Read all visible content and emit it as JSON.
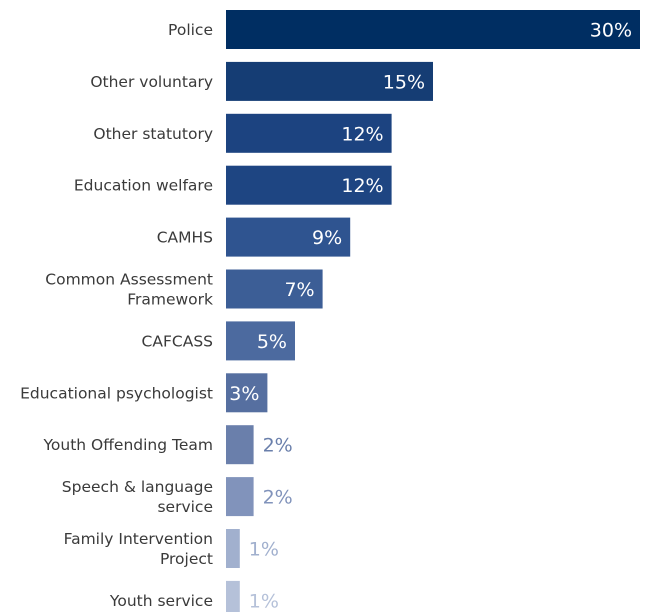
{
  "chart_data": {
    "type": "bar",
    "orientation": "horizontal",
    "categories": [
      "Police",
      "Other voluntary",
      "Other statutory",
      "Education welfare",
      "CAMHS",
      "Common Assessment Framework",
      "CAFCASS",
      "Educational psychologist",
      "Youth Offending Team",
      "Speech & language service",
      "Family Intervention Project",
      "Youth service"
    ],
    "values": [
      30,
      15,
      12,
      12,
      9,
      7,
      5,
      3,
      2,
      2,
      1,
      1
    ],
    "value_labels": [
      "30%",
      "15%",
      "12%",
      "12%",
      "9%",
      "7%",
      "5%",
      "3%",
      "2%",
      "2%",
      "1%",
      "1%"
    ],
    "category_label_lines": [
      [
        "Police"
      ],
      [
        "Other voluntary"
      ],
      [
        "Other statutory"
      ],
      [
        "Education welfare"
      ],
      [
        "CAMHS"
      ],
      [
        "Common Assessment",
        "Framework"
      ],
      [
        "CAFCASS"
      ],
      [
        "Educational psychologist"
      ],
      [
        "Youth Offending Team"
      ],
      [
        "Speech & language",
        "service"
      ],
      [
        "Family Intervention",
        "Project"
      ],
      [
        "Youth service"
      ]
    ],
    "bar_colors": [
      "#002e62",
      "#153d74",
      "#1c4380",
      "#1e4582",
      "#2f5490",
      "#3c5e96",
      "#4c6a9f",
      "#566fa0",
      "#6a7fab",
      "#8193bb",
      "#a1b0ce",
      "#b5c1d9"
    ],
    "value_label_colors": [
      "#ffffff",
      "#ffffff",
      "#ffffff",
      "#ffffff",
      "#ffffff",
      "#ffffff",
      "#ffffff",
      "#ffffff",
      "#6a7fab",
      "#8193bb",
      "#a1b0ce",
      "#b5c1d9"
    ],
    "xlim": [
      0,
      30
    ],
    "grid": false,
    "legend": "none",
    "xlabel": "",
    "ylabel": "",
    "title": ""
  }
}
